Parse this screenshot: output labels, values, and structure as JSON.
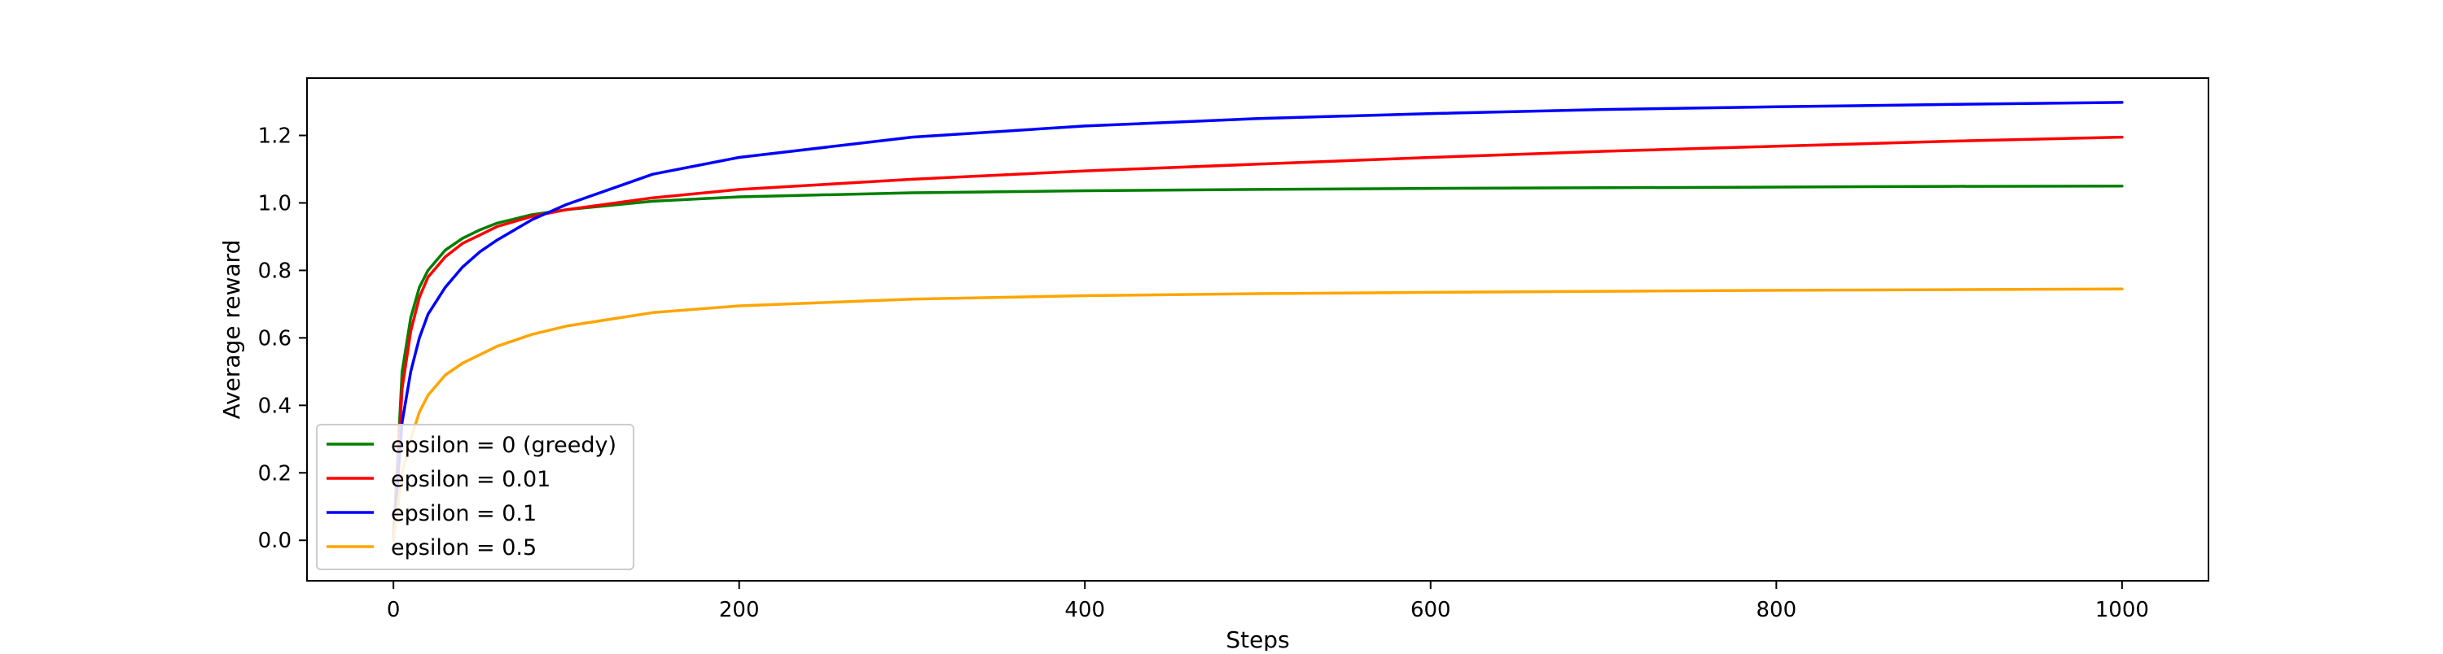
{
  "chart_data": {
    "type": "line",
    "title": "",
    "xlabel": "Steps",
    "ylabel": "Average reward",
    "xlim": [
      -50,
      1050
    ],
    "ylim": [
      -0.12,
      1.37
    ],
    "x_ticks": [
      0,
      200,
      400,
      600,
      800,
      1000
    ],
    "x_tick_labels": [
      "0",
      "200",
      "400",
      "600",
      "800",
      "1000"
    ],
    "y_ticks": [
      0.0,
      0.2,
      0.4,
      0.6,
      0.8,
      1.0,
      1.2
    ],
    "y_tick_labels": [
      "0.0",
      "0.2",
      "0.4",
      "0.6",
      "0.8",
      "1.0",
      "1.2"
    ],
    "grid": false,
    "legend_position": "lower-left",
    "series": [
      {
        "name": "epsilon = 0 (greedy)",
        "color": "#008000",
        "x": [
          0,
          5,
          10,
          15,
          20,
          30,
          40,
          50,
          60,
          80,
          100,
          150,
          200,
          300,
          400,
          500,
          600,
          700,
          800,
          900,
          1000
        ],
        "y": [
          0.0,
          0.5,
          0.66,
          0.75,
          0.8,
          0.86,
          0.895,
          0.92,
          0.94,
          0.965,
          0.98,
          1.005,
          1.018,
          1.03,
          1.036,
          1.04,
          1.043,
          1.045,
          1.047,
          1.049,
          1.05
        ]
      },
      {
        "name": "epsilon = 0.01",
        "color": "#ff0000",
        "x": [
          0,
          5,
          10,
          15,
          20,
          30,
          40,
          50,
          60,
          80,
          100,
          150,
          200,
          300,
          400,
          500,
          600,
          700,
          800,
          900,
          1000
        ],
        "y": [
          0.0,
          0.45,
          0.62,
          0.72,
          0.78,
          0.84,
          0.88,
          0.905,
          0.93,
          0.96,
          0.98,
          1.015,
          1.04,
          1.07,
          1.095,
          1.115,
          1.135,
          1.153,
          1.168,
          1.183,
          1.195
        ]
      },
      {
        "name": "epsilon = 0.1",
        "color": "#0000ff",
        "x": [
          0,
          5,
          10,
          15,
          20,
          30,
          40,
          50,
          60,
          80,
          100,
          150,
          200,
          300,
          400,
          500,
          600,
          700,
          800,
          900,
          1000
        ],
        "y": [
          0.0,
          0.35,
          0.5,
          0.6,
          0.67,
          0.75,
          0.81,
          0.855,
          0.89,
          0.95,
          0.995,
          1.085,
          1.135,
          1.195,
          1.228,
          1.25,
          1.265,
          1.277,
          1.285,
          1.292,
          1.298
        ]
      },
      {
        "name": "epsilon = 0.5",
        "color": "#ffa500",
        "x": [
          0,
          5,
          10,
          15,
          20,
          30,
          40,
          50,
          60,
          80,
          100,
          150,
          200,
          300,
          400,
          500,
          600,
          700,
          800,
          900,
          1000
        ],
        "y": [
          0.0,
          0.2,
          0.3,
          0.38,
          0.43,
          0.49,
          0.525,
          0.55,
          0.575,
          0.61,
          0.635,
          0.675,
          0.695,
          0.715,
          0.725,
          0.731,
          0.735,
          0.738,
          0.741,
          0.743,
          0.745
        ]
      }
    ]
  }
}
